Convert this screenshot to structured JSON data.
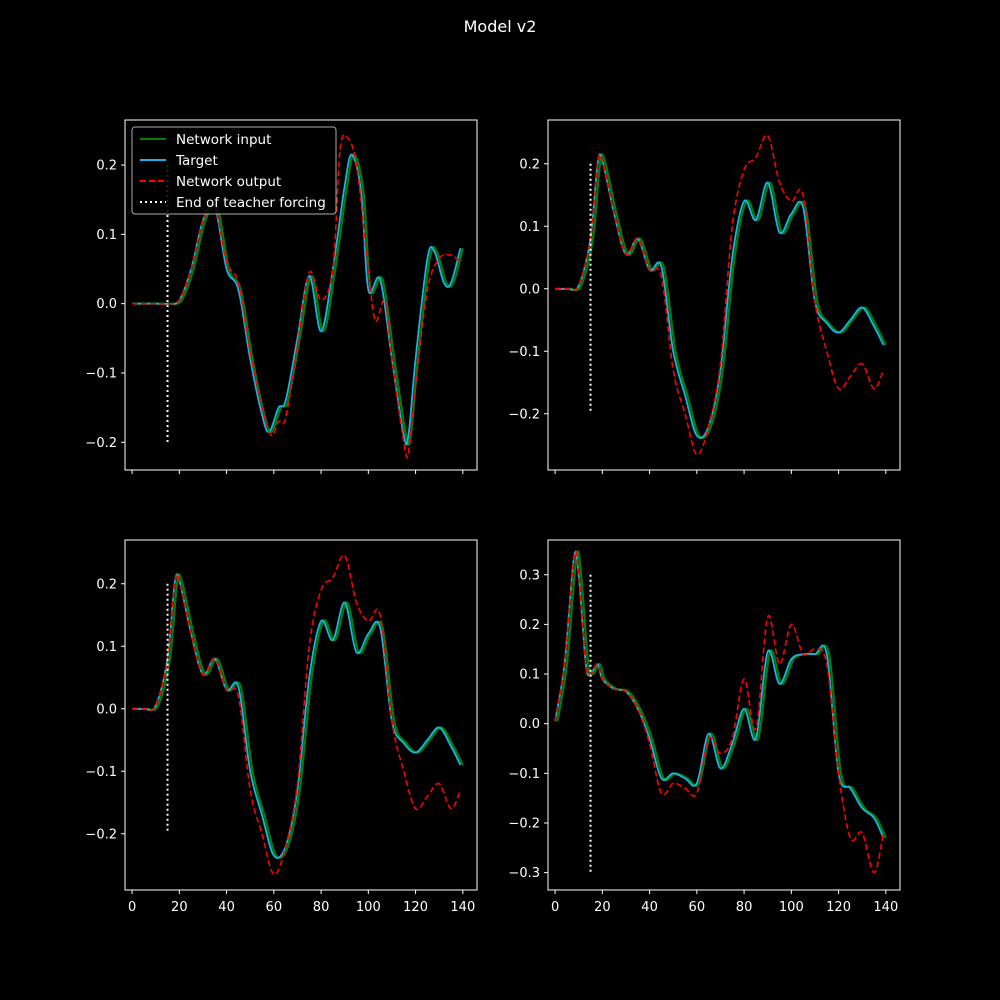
{
  "figure": {
    "title": "Model v2",
    "background": "#000000",
    "foreground": "#ffffff"
  },
  "chart_data": [
    {
      "type": "line",
      "panel": "top-left",
      "xlim": [
        -3,
        146
      ],
      "ylim": [
        -0.24,
        0.265
      ],
      "xticks": [
        0,
        20,
        40,
        60,
        80,
        100,
        120,
        140
      ],
      "yticks": [
        -0.2,
        -0.1,
        0.0,
        0.1,
        0.2
      ],
      "ytick_labels": [
        "−0.2",
        "−0.1",
        "0.0",
        "0.1",
        "0.2"
      ],
      "show_xtick_labels": false,
      "teacher_forcing_end": {
        "x": 15,
        "y": [
          -0.2,
          0.2
        ]
      },
      "legend": {
        "placement": "top-left",
        "entries": [
          {
            "label": "Network input",
            "color": "#008000",
            "style": "solid"
          },
          {
            "label": "Target",
            "color": "#1fb1e6",
            "style": "solid"
          },
          {
            "label": "Network output",
            "color": "#ff0000",
            "style": "dashed"
          },
          {
            "label": "End of teacher forcing",
            "color": "#ffffff",
            "style": "dotted"
          }
        ]
      },
      "series": [
        {
          "name": "Target",
          "x": [
            0,
            10,
            15,
            20,
            25,
            30,
            35,
            40,
            45,
            50,
            55,
            58,
            62,
            65,
            70,
            75,
            80,
            85,
            90,
            93,
            97,
            100,
            105,
            110,
            115,
            117,
            120,
            125,
            128,
            132,
            135,
            139
          ],
          "y": [
            0,
            0,
            0,
            0.005,
            0.05,
            0.12,
            0.14,
            0.05,
            0.02,
            -0.08,
            -0.16,
            -0.185,
            -0.15,
            -0.14,
            -0.05,
            0.04,
            -0.04,
            0.05,
            0.17,
            0.215,
            0.16,
            0.02,
            0.035,
            -0.08,
            -0.19,
            -0.19,
            -0.08,
            0.065,
            0.075,
            0.03,
            0.03,
            0.08
          ]
        },
        {
          "name": "Network output",
          "x": [
            0,
            10,
            15,
            20,
            25,
            30,
            35,
            40,
            45,
            50,
            55,
            59,
            62,
            65,
            70,
            75,
            80,
            85,
            88,
            91,
            95,
            100,
            103,
            107,
            110,
            115,
            117,
            120,
            125,
            130,
            135,
            139
          ],
          "y": [
            0,
            0,
            0,
            0.005,
            0.05,
            0.12,
            0.14,
            0.06,
            0.03,
            -0.07,
            -0.15,
            -0.19,
            -0.17,
            -0.165,
            -0.06,
            0.045,
            0.005,
            0.05,
            0.22,
            0.24,
            0.2,
            0.05,
            -0.025,
            0.005,
            -0.08,
            -0.2,
            -0.215,
            -0.12,
            0.02,
            0.065,
            0.07,
            0.06
          ]
        }
      ]
    },
    {
      "type": "line",
      "panel": "top-right",
      "xlim": [
        -3,
        146
      ],
      "ylim": [
        -0.29,
        0.27
      ],
      "xticks": [
        0,
        20,
        40,
        60,
        80,
        100,
        120,
        140
      ],
      "yticks": [
        -0.2,
        -0.1,
        0.0,
        0.1,
        0.2
      ],
      "ytick_labels": [
        "−0.2",
        "−0.1",
        "0.0",
        "0.1",
        "0.2"
      ],
      "show_xtick_labels": false,
      "teacher_forcing_end": {
        "x": 15,
        "y": [
          -0.2,
          0.2
        ]
      },
      "series": [
        {
          "name": "Target",
          "x": [
            0,
            5,
            10,
            15,
            18,
            20,
            25,
            30,
            35,
            40,
            45,
            50,
            55,
            60,
            65,
            70,
            75,
            80,
            85,
            90,
            95,
            100,
            105,
            110,
            115,
            120,
            125,
            130,
            135,
            139
          ],
          "y": [
            0,
            0,
            0.005,
            0.08,
            0.2,
            0.205,
            0.12,
            0.055,
            0.08,
            0.03,
            0.035,
            -0.1,
            -0.17,
            -0.235,
            -0.22,
            -0.13,
            0.05,
            0.14,
            0.11,
            0.17,
            0.09,
            0.12,
            0.13,
            -0.02,
            -0.055,
            -0.07,
            -0.05,
            -0.03,
            -0.06,
            -0.09
          ]
        },
        {
          "name": "Network output",
          "x": [
            0,
            5,
            10,
            15,
            18,
            20,
            25,
            30,
            35,
            40,
            45,
            50,
            55,
            60,
            65,
            70,
            75,
            80,
            85,
            90,
            95,
            100,
            105,
            110,
            115,
            120,
            125,
            130,
            135,
            139
          ],
          "y": [
            0,
            0,
            0.005,
            0.08,
            0.2,
            0.205,
            0.12,
            0.055,
            0.08,
            0.03,
            0.02,
            -0.13,
            -0.2,
            -0.265,
            -0.22,
            -0.12,
            0.1,
            0.19,
            0.21,
            0.245,
            0.17,
            0.14,
            0.15,
            -0.02,
            -0.1,
            -0.16,
            -0.14,
            -0.12,
            -0.16,
            -0.13
          ]
        }
      ]
    },
    {
      "type": "line",
      "panel": "bottom-left",
      "xlim": [
        -3,
        146
      ],
      "ylim": [
        -0.29,
        0.27
      ],
      "xticks": [
        0,
        20,
        40,
        60,
        80,
        100,
        120,
        140
      ],
      "xtick_labels": [
        "0",
        "20",
        "40",
        "60",
        "80",
        "100",
        "120",
        "140"
      ],
      "yticks": [
        -0.2,
        -0.1,
        0.0,
        0.1,
        0.2
      ],
      "ytick_labels": [
        "−0.2",
        "−0.1",
        "0.0",
        "0.1",
        "0.2"
      ],
      "show_xtick_labels": true,
      "teacher_forcing_end": {
        "x": 15,
        "y": [
          -0.2,
          0.2
        ]
      },
      "series": [
        {
          "name": "Target",
          "x": [
            0,
            5,
            10,
            15,
            18,
            20,
            25,
            30,
            35,
            40,
            45,
            50,
            55,
            60,
            65,
            70,
            75,
            80,
            85,
            90,
            95,
            100,
            105,
            110,
            115,
            120,
            125,
            130,
            135,
            139
          ],
          "y": [
            0,
            0,
            0.005,
            0.08,
            0.2,
            0.205,
            0.12,
            0.055,
            0.08,
            0.03,
            0.035,
            -0.1,
            -0.17,
            -0.235,
            -0.22,
            -0.13,
            0.05,
            0.14,
            0.11,
            0.17,
            0.09,
            0.12,
            0.13,
            -0.02,
            -0.055,
            -0.07,
            -0.05,
            -0.03,
            -0.06,
            -0.09
          ]
        },
        {
          "name": "Network output",
          "x": [
            0,
            5,
            10,
            15,
            18,
            20,
            25,
            30,
            35,
            40,
            45,
            50,
            55,
            60,
            65,
            70,
            75,
            80,
            85,
            90,
            95,
            100,
            105,
            110,
            115,
            120,
            125,
            130,
            135,
            139
          ],
          "y": [
            0,
            0,
            0.005,
            0.08,
            0.2,
            0.205,
            0.12,
            0.055,
            0.08,
            0.03,
            0.02,
            -0.13,
            -0.2,
            -0.265,
            -0.22,
            -0.12,
            0.1,
            0.19,
            0.21,
            0.245,
            0.17,
            0.14,
            0.15,
            -0.02,
            -0.1,
            -0.16,
            -0.14,
            -0.12,
            -0.16,
            -0.13
          ]
        }
      ]
    },
    {
      "type": "line",
      "panel": "bottom-right",
      "xlim": [
        -3,
        146
      ],
      "ylim": [
        -0.335,
        0.37
      ],
      "xticks": [
        0,
        20,
        40,
        60,
        80,
        100,
        120,
        140
      ],
      "xtick_labels": [
        "0",
        "20",
        "40",
        "60",
        "80",
        "100",
        "120",
        "140"
      ],
      "yticks": [
        -0.3,
        -0.2,
        -0.1,
        0.0,
        0.1,
        0.2,
        0.3
      ],
      "ytick_labels": [
        "−0.3",
        "−0.2",
        "−0.1",
        "0.0",
        "0.1",
        "0.2",
        "0.3"
      ],
      "show_xtick_labels": true,
      "teacher_forcing_end": {
        "x": 15,
        "y": [
          -0.3,
          0.3
        ]
      },
      "series": [
        {
          "name": "Target",
          "x": [
            0,
            4,
            8,
            10,
            13,
            15,
            18,
            20,
            25,
            30,
            35,
            40,
            45,
            50,
            55,
            60,
            65,
            70,
            75,
            80,
            85,
            90,
            95,
            100,
            105,
            110,
            115,
            120,
            125,
            130,
            135,
            139
          ],
          "y": [
            0.005,
            0.12,
            0.335,
            0.3,
            0.12,
            0.1,
            0.12,
            0.09,
            0.07,
            0.065,
            0.03,
            -0.03,
            -0.11,
            -0.1,
            -0.11,
            -0.12,
            -0.02,
            -0.09,
            -0.04,
            0.03,
            -0.03,
            0.145,
            0.08,
            0.13,
            0.14,
            0.14,
            0.14,
            -0.1,
            -0.13,
            -0.17,
            -0.19,
            -0.23
          ]
        },
        {
          "name": "Network output",
          "x": [
            0,
            4,
            8,
            10,
            13,
            15,
            18,
            20,
            25,
            30,
            35,
            40,
            45,
            50,
            55,
            60,
            65,
            70,
            75,
            80,
            85,
            90,
            95,
            100,
            105,
            110,
            115,
            120,
            125,
            130,
            135,
            139
          ],
          "y": [
            0.005,
            0.12,
            0.335,
            0.3,
            0.12,
            0.1,
            0.12,
            0.09,
            0.07,
            0.065,
            0.03,
            -0.04,
            -0.14,
            -0.12,
            -0.13,
            -0.14,
            -0.03,
            -0.06,
            -0.03,
            0.09,
            -0.01,
            0.215,
            0.12,
            0.2,
            0.14,
            0.15,
            0.12,
            -0.1,
            -0.23,
            -0.22,
            -0.3,
            -0.22
          ]
        }
      ]
    }
  ]
}
